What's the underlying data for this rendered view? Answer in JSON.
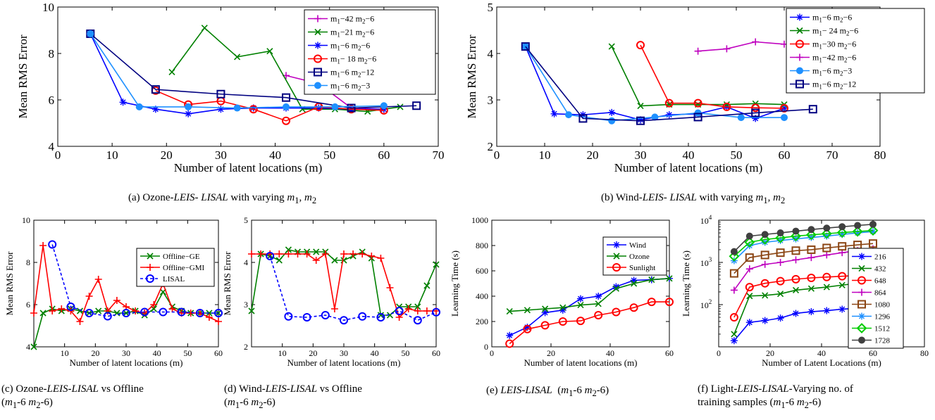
{
  "chart_data": [
    {
      "type": "line",
      "panel": "a",
      "caption": "(a) Ozone-LEIS- LISAL with varying m1, m2",
      "xlabel": "Number of latent locations (m)",
      "ylabel": "Mean RMS Error",
      "xlim": [
        0,
        70
      ],
      "ylim": [
        4,
        10
      ],
      "xticks": [
        0,
        10,
        20,
        30,
        40,
        50,
        60,
        70
      ],
      "yticks": [
        4,
        6,
        8,
        10
      ],
      "legend_position": "top-right",
      "series": [
        {
          "name": "m1−42 m2−6",
          "color": "#bf00bf",
          "marker": "plus",
          "x": [
            42,
            48,
            54,
            60
          ],
          "y": [
            7.05,
            6.7,
            5.65,
            5.6
          ]
        },
        {
          "name": "m1−21 m2−6",
          "color": "#008000",
          "marker": "x",
          "x": [
            21,
            27,
            33,
            39,
            45,
            51,
            57,
            63
          ],
          "y": [
            7.2,
            9.1,
            7.85,
            8.1,
            5.6,
            5.6,
            5.5,
            5.7
          ]
        },
        {
          "name": "m1−6 m2−6",
          "color": "#0000ff",
          "marker": "star",
          "x": [
            6,
            12,
            18,
            24,
            30,
            36,
            42,
            48,
            54,
            60
          ],
          "y": [
            8.85,
            5.9,
            5.6,
            5.4,
            5.6,
            5.65,
            5.65,
            5.65,
            5.6,
            5.6
          ]
        },
        {
          "name": "m1− 18 m2−6",
          "color": "#ff0000",
          "marker": "circle",
          "x": [
            18,
            24,
            30,
            36,
            42,
            48,
            54,
            60
          ],
          "y": [
            6.4,
            5.8,
            5.95,
            5.6,
            5.1,
            5.7,
            5.6,
            5.55
          ]
        },
        {
          "name": "m1−6 m2−12",
          "color": "#000080",
          "marker": "square",
          "x": [
            6,
            18,
            30,
            42,
            54,
            66
          ],
          "y": [
            8.85,
            6.45,
            6.25,
            6.1,
            5.65,
            5.75
          ]
        },
        {
          "name": "m1−6 m2−3",
          "color": "#1e90ff",
          "marker": "dot",
          "x": [
            6,
            15,
            24,
            33,
            42,
            51,
            60
          ],
          "y": [
            8.85,
            5.7,
            5.7,
            5.65,
            5.7,
            5.7,
            5.75
          ]
        }
      ]
    },
    {
      "type": "line",
      "panel": "b",
      "caption": "(b) Wind-LEIS- LISAL with varying m1, m2",
      "xlabel": "Number of latent locations (m)",
      "ylabel": "Mean RMS Error",
      "xlim": [
        0,
        80
      ],
      "ylim": [
        2,
        5
      ],
      "xticks": [
        0,
        10,
        20,
        30,
        40,
        50,
        60,
        70,
        80
      ],
      "yticks": [
        2,
        3,
        4,
        5
      ],
      "legend_position": "top-right",
      "series": [
        {
          "name": "m1−6 m2−6",
          "color": "#0000ff",
          "marker": "star",
          "x": [
            6,
            12,
            18,
            24,
            30,
            36,
            42,
            48,
            54,
            60
          ],
          "y": [
            4.15,
            2.7,
            2.68,
            2.73,
            2.57,
            2.68,
            2.7,
            2.85,
            2.6,
            2.82
          ]
        },
        {
          "name": "m1− 24 m2−6",
          "color": "#008000",
          "marker": "x",
          "x": [
            24,
            30,
            36,
            42,
            48,
            54,
            60
          ],
          "y": [
            4.15,
            2.87,
            2.9,
            2.9,
            2.9,
            2.92,
            2.9
          ]
        },
        {
          "name": "m1−30 m2−6",
          "color": "#ff0000",
          "marker": "circle",
          "x": [
            30,
            36,
            42,
            48,
            54,
            60
          ],
          "y": [
            4.18,
            2.93,
            2.93,
            2.85,
            2.83,
            2.82
          ]
        },
        {
          "name": "m1−42 m2−6",
          "color": "#bf00bf",
          "marker": "plus",
          "x": [
            42,
            48,
            54,
            60
          ],
          "y": [
            4.05,
            4.1,
            4.25,
            4.2
          ]
        },
        {
          "name": "m1−6 m2−3",
          "color": "#1e90ff",
          "marker": "dot",
          "x": [
            6,
            15,
            24,
            33,
            42,
            51,
            60
          ],
          "y": [
            4.15,
            2.68,
            2.55,
            2.63,
            2.72,
            2.62,
            2.62
          ]
        },
        {
          "name": "m1−6 m2−12",
          "color": "#000080",
          "marker": "square",
          "x": [
            6,
            18,
            30,
            42,
            54,
            66
          ],
          "y": [
            4.15,
            2.6,
            2.55,
            2.63,
            2.72,
            2.8
          ]
        }
      ]
    },
    {
      "type": "line",
      "panel": "c",
      "caption_lines": [
        "(c) Ozone-LEIS-LISAL vs Offline",
        "(m1-6 m2-6)"
      ],
      "xlabel": "Number of latent locations (m)",
      "ylabel": "Mean RMS Error",
      "xlim": [
        0,
        60
      ],
      "ylim": [
        4,
        10
      ],
      "xticks": [
        10,
        20,
        30,
        40,
        50,
        60
      ],
      "yticks": [
        4,
        6,
        8,
        10
      ],
      "legend_position": "top-right",
      "series": [
        {
          "name": "Offline−GE",
          "color": "#008000",
          "marker": "x",
          "x": [
            0,
            3,
            6,
            9,
            12,
            15,
            18,
            21,
            24,
            27,
            30,
            33,
            36,
            39,
            42,
            45,
            48,
            51,
            54,
            57,
            60
          ],
          "y": [
            4.0,
            5.6,
            5.8,
            5.7,
            5.8,
            5.7,
            5.6,
            5.7,
            5.7,
            5.6,
            5.6,
            5.7,
            5.5,
            5.8,
            6.6,
            5.9,
            5.7,
            5.6,
            5.6,
            5.6,
            5.6
          ]
        },
        {
          "name": "Offline−GMI",
          "color": "#ff0000",
          "marker": "plus",
          "x": [
            0,
            3,
            6,
            9,
            12,
            15,
            18,
            21,
            24,
            27,
            30,
            33,
            36,
            39,
            42,
            45,
            48,
            51,
            54,
            57,
            60
          ],
          "y": [
            5.6,
            8.8,
            5.7,
            5.8,
            5.7,
            5.2,
            6.4,
            7.2,
            5.7,
            6.2,
            5.9,
            5.7,
            5.6,
            6.0,
            7.0,
            5.8,
            5.6,
            5.6,
            5.6,
            5.4,
            5.2
          ]
        },
        {
          "name": "LISAL",
          "color": "#0000ff",
          "marker": "circle",
          "dashed": true,
          "x": [
            6,
            12,
            18,
            24,
            30,
            36,
            42,
            48,
            54,
            60
          ],
          "y": [
            8.85,
            5.9,
            5.6,
            5.45,
            5.6,
            5.65,
            5.65,
            5.65,
            5.6,
            5.6
          ]
        }
      ]
    },
    {
      "type": "line",
      "panel": "d",
      "caption_lines": [
        "(d) Wind-LEIS-LISAL vs Offline",
        "(m1-6 m2-6)"
      ],
      "xlabel": "Number of latent locations (m)",
      "ylabel": "Mean RMS Error",
      "xlim": [
        0,
        60
      ],
      "ylim": [
        2,
        5
      ],
      "xticks": [
        10,
        20,
        30,
        40,
        50,
        60
      ],
      "yticks": [
        2,
        3,
        4,
        5
      ],
      "series": [
        {
          "name": "Offline−GE",
          "color": "#008000",
          "marker": "x",
          "x": [
            0,
            3,
            6,
            9,
            12,
            15,
            18,
            21,
            24,
            27,
            30,
            33,
            36,
            39,
            42,
            45,
            48,
            51,
            54,
            57,
            60
          ],
          "y": [
            2.85,
            4.2,
            4.15,
            4.05,
            4.3,
            4.25,
            4.25,
            4.25,
            4.25,
            4.05,
            4.05,
            4.15,
            4.25,
            4.1,
            2.75,
            2.75,
            2.95,
            2.95,
            2.95,
            3.45,
            3.95
          ]
        },
        {
          "name": "Offline−GMI",
          "color": "#ff0000",
          "marker": "plus",
          "x": [
            0,
            3,
            6,
            9,
            12,
            15,
            18,
            21,
            24,
            27,
            30,
            33,
            36,
            39,
            42,
            45,
            48,
            51,
            54,
            57,
            60
          ],
          "y": [
            4.2,
            4.2,
            4.2,
            4.2,
            4.2,
            4.2,
            4.2,
            4.05,
            4.2,
            2.9,
            4.2,
            4.2,
            4.2,
            4.15,
            4.1,
            3.4,
            2.7,
            2.9,
            2.85,
            2.85,
            2.85
          ]
        },
        {
          "name": "LISAL",
          "color": "#0000ff",
          "marker": "circle",
          "dashed": true,
          "x": [
            6,
            12,
            18,
            24,
            30,
            36,
            42,
            48,
            54,
            60
          ],
          "y": [
            4.15,
            2.72,
            2.7,
            2.75,
            2.63,
            2.72,
            2.7,
            2.85,
            2.63,
            2.82
          ]
        }
      ]
    },
    {
      "type": "line",
      "panel": "e",
      "caption": "(e) LEIS-LISAL (m1-6 m2-6)",
      "xlabel": "Number of latent locations (m)",
      "ylabel": "Learning Time (s)",
      "xlim": [
        0,
        60
      ],
      "ylim": [
        0,
        1000
      ],
      "xticks": [
        0,
        20,
        40,
        60
      ],
      "yticks": [
        0,
        200,
        400,
        600,
        800,
        1000
      ],
      "legend_position": "top-right",
      "series": [
        {
          "name": "Wind",
          "color": "#0000ff",
          "marker": "star",
          "x": [
            6,
            12,
            18,
            24,
            30,
            36,
            42,
            48,
            54,
            60
          ],
          "y": [
            90,
            155,
            270,
            290,
            380,
            400,
            475,
            525,
            530,
            540
          ]
        },
        {
          "name": "Ozone",
          "color": "#008000",
          "marker": "x",
          "x": [
            6,
            12,
            18,
            24,
            30,
            36,
            42,
            48,
            54,
            60
          ],
          "y": [
            280,
            290,
            300,
            310,
            330,
            340,
            460,
            500,
            530,
            540
          ]
        },
        {
          "name": "Sunlight",
          "color": "#ff0000",
          "marker": "circle",
          "x": [
            6,
            12,
            18,
            24,
            30,
            36,
            42,
            48,
            54,
            60
          ],
          "y": [
            25,
            140,
            170,
            200,
            205,
            250,
            275,
            310,
            355,
            355
          ]
        }
      ]
    },
    {
      "type": "line",
      "panel": "f",
      "caption_lines": [
        "(f) Light-LEIS-LISAL-Varying no. of",
        "training samples (m1-6 m2-6)"
      ],
      "xlabel": "Number of Latent Locations (m)",
      "ylabel": "Learning Time (s)",
      "yscale": "log",
      "xlim": [
        0,
        80
      ],
      "ylim": [
        10,
        10000
      ],
      "xticks": [
        0,
        20,
        40,
        60,
        80
      ],
      "yticks_labels": [
        "10^2",
        "10^3",
        "10^4"
      ],
      "legend_position": "right",
      "series": [
        {
          "name": "216",
          "color": "#0000ff",
          "marker": "star",
          "x": [
            6,
            12,
            18,
            24,
            30,
            36,
            42,
            48,
            54,
            60
          ],
          "y": [
            14,
            38,
            42,
            48,
            62,
            68,
            72,
            78,
            82,
            85
          ]
        },
        {
          "name": "432",
          "color": "#008000",
          "marker": "x",
          "x": [
            6,
            12,
            18,
            24,
            30,
            36,
            42,
            48,
            54,
            60
          ],
          "y": [
            20,
            160,
            165,
            180,
            220,
            240,
            260,
            290,
            320,
            360
          ]
        },
        {
          "name": "648",
          "color": "#ff0000",
          "marker": "circle",
          "x": [
            6,
            12,
            18,
            24,
            30,
            36,
            42,
            48,
            54,
            60
          ],
          "y": [
            50,
            260,
            320,
            360,
            400,
            430,
            450,
            470,
            490,
            500
          ]
        },
        {
          "name": "864",
          "color": "#bf00bf",
          "marker": "plus",
          "x": [
            6,
            12,
            18,
            24,
            30,
            36,
            42,
            48,
            54,
            60
          ],
          "y": [
            220,
            700,
            900,
            1000,
            1150,
            1300,
            1500,
            1700,
            1900,
            2100
          ]
        },
        {
          "name": "1080",
          "color": "#8b4513",
          "marker": "square",
          "x": [
            6,
            12,
            18,
            24,
            30,
            36,
            42,
            48,
            54,
            60
          ],
          "y": [
            550,
            1300,
            1500,
            1700,
            1900,
            2000,
            2200,
            2400,
            2600,
            2800
          ]
        },
        {
          "name": "1296",
          "color": "#1e90ff",
          "marker": "star",
          "x": [
            6,
            12,
            18,
            24,
            30,
            36,
            42,
            48,
            54,
            60
          ],
          "y": [
            1100,
            2500,
            3000,
            3300,
            3600,
            3900,
            4200,
            4600,
            5000,
            5400
          ]
        },
        {
          "name": "1512",
          "color": "#00cc00",
          "marker": "diamond",
          "x": [
            6,
            12,
            18,
            24,
            30,
            36,
            42,
            48,
            54,
            60
          ],
          "y": [
            1400,
            3000,
            3500,
            3800,
            4200,
            4500,
            4800,
            5100,
            5400,
            5700
          ]
        },
        {
          "name": "1728",
          "color": "#404040",
          "marker": "dot",
          "x": [
            6,
            12,
            18,
            24,
            30,
            36,
            42,
            48,
            54,
            60
          ],
          "y": [
            1800,
            4200,
            4600,
            5000,
            5500,
            6000,
            6500,
            7000,
            7500,
            8000
          ]
        }
      ]
    }
  ]
}
